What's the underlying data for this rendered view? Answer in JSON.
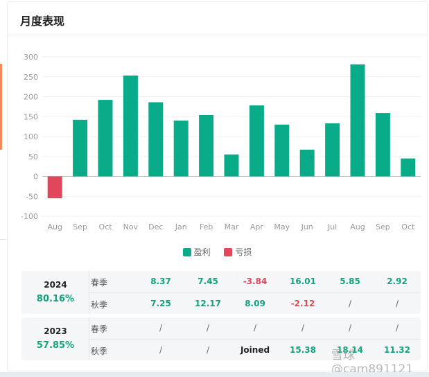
{
  "card": {
    "title": "月度表现"
  },
  "chart_data": {
    "type": "bar",
    "categories": [
      "Aug",
      "Sep",
      "Oct",
      "Nov",
      "Dec",
      "Jan",
      "Feb",
      "Mar",
      "Apr",
      "May",
      "Jun",
      "Jul",
      "Aug",
      "Sep",
      "Oct"
    ],
    "values": [
      -55,
      142,
      192,
      253,
      186,
      140,
      154,
      55,
      178,
      130,
      67,
      133,
      281,
      159,
      45
    ],
    "title": "",
    "xlabel": "",
    "ylabel": "",
    "ylim": [
      -100,
      300
    ],
    "yticks": [
      -100,
      -50,
      0,
      50,
      100,
      150,
      200,
      250,
      300
    ],
    "grid": true,
    "legend": {
      "placement": "bottom",
      "items": [
        {
          "name": "盈利",
          "color": "#0aab88"
        },
        {
          "name": "亏损",
          "color": "#e0465c"
        }
      ]
    },
    "colors": {
      "positive": "#0aab88",
      "negative": "#e0465c"
    }
  },
  "table": {
    "years": [
      {
        "year": "2024",
        "total": "80.16%",
        "rows": [
          {
            "season": "春季",
            "values": [
              {
                "text": "8.37",
                "kind": "pos"
              },
              {
                "text": "7.45",
                "kind": "pos"
              },
              {
                "text": "-3.84",
                "kind": "neg"
              },
              {
                "text": "16.01",
                "kind": "pos"
              },
              {
                "text": "5.85",
                "kind": "pos"
              },
              {
                "text": "2.92",
                "kind": "pos"
              }
            ]
          },
          {
            "season": "秋季",
            "values": [
              {
                "text": "7.25",
                "kind": "pos"
              },
              {
                "text": "12.17",
                "kind": "pos"
              },
              {
                "text": "8.09",
                "kind": "pos"
              },
              {
                "text": "-2.12",
                "kind": "neg"
              },
              {
                "text": "/",
                "kind": "na"
              },
              {
                "text": "/",
                "kind": "na"
              }
            ]
          }
        ]
      },
      {
        "year": "2023",
        "total": "57.85%",
        "rows": [
          {
            "season": "春季",
            "values": [
              {
                "text": "/",
                "kind": "na"
              },
              {
                "text": "/",
                "kind": "na"
              },
              {
                "text": "/",
                "kind": "na"
              },
              {
                "text": "/",
                "kind": "na"
              },
              {
                "text": "/",
                "kind": "na"
              },
              {
                "text": "/",
                "kind": "na"
              }
            ]
          },
          {
            "season": "秋季",
            "values": [
              {
                "text": "/",
                "kind": "na"
              },
              {
                "text": "/",
                "kind": "na"
              },
              {
                "text": "Joined",
                "kind": "txt"
              },
              {
                "text": "15.38",
                "kind": "pos"
              },
              {
                "text": "18.14",
                "kind": "pos"
              },
              {
                "text": "11.32",
                "kind": "pos"
              }
            ]
          }
        ]
      }
    ]
  },
  "watermark": "雪球@cam891121"
}
